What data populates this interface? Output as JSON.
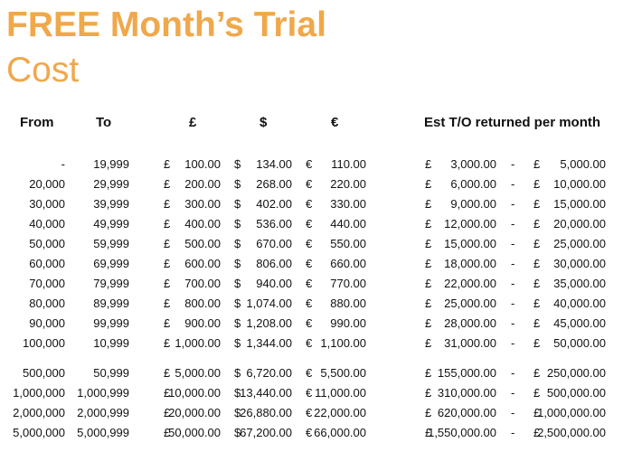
{
  "title": "FREE Month’s Trial",
  "subtitle": "Cost",
  "headers": {
    "from": "From",
    "to": "To",
    "gbp": "£",
    "usd": "$",
    "eur": "€",
    "turnover": "Est T/O returned per month"
  },
  "symbols": {
    "gbp": "£",
    "usd": "$",
    "eur": "€",
    "dash": "-"
  },
  "rows": [
    {
      "from": "-",
      "to": "19,999",
      "gbp": "100.00",
      "usd": "134.00",
      "eur": "110.00",
      "to_low": "3,000.00",
      "to_high": "5,000.00"
    },
    {
      "from": "20,000",
      "to": "29,999",
      "gbp": "200.00",
      "usd": "268.00",
      "eur": "220.00",
      "to_low": "6,000.00",
      "to_high": "10,000.00"
    },
    {
      "from": "30,000",
      "to": "39,999",
      "gbp": "300.00",
      "usd": "402.00",
      "eur": "330.00",
      "to_low": "9,000.00",
      "to_high": "15,000.00"
    },
    {
      "from": "40,000",
      "to": "49,999",
      "gbp": "400.00",
      "usd": "536.00",
      "eur": "440.00",
      "to_low": "12,000.00",
      "to_high": "20,000.00"
    },
    {
      "from": "50,000",
      "to": "59,999",
      "gbp": "500.00",
      "usd": "670.00",
      "eur": "550.00",
      "to_low": "15,000.00",
      "to_high": "25,000.00"
    },
    {
      "from": "60,000",
      "to": "69,999",
      "gbp": "600.00",
      "usd": "806.00",
      "eur": "660.00",
      "to_low": "18,000.00",
      "to_high": "30,000.00"
    },
    {
      "from": "70,000",
      "to": "79,999",
      "gbp": "700.00",
      "usd": "940.00",
      "eur": "770.00",
      "to_low": "22,000.00",
      "to_high": "35,000.00"
    },
    {
      "from": "80,000",
      "to": "89,999",
      "gbp": "800.00",
      "usd": "1,074.00",
      "eur": "880.00",
      "to_low": "25,000.00",
      "to_high": "40,000.00"
    },
    {
      "from": "90,000",
      "to": "99,999",
      "gbp": "900.00",
      "usd": "1,208.00",
      "eur": "990.00",
      "to_low": "28,000.00",
      "to_high": "45,000.00"
    },
    {
      "from": "100,000",
      "to": "10,999",
      "gbp": "1,000.00",
      "usd": "1,344.00",
      "eur": "1,100.00",
      "to_low": "31,000.00",
      "to_high": "50,000.00"
    },
    {
      "from": "500,000",
      "to": "50,999",
      "gbp": "5,000.00",
      "usd": "6,720.00",
      "eur": "5,500.00",
      "to_low": "155,000.00",
      "to_high": "250,000.00"
    },
    {
      "from": "1,000,000",
      "to": "1,000,999",
      "gbp": "10,000.00",
      "usd": "13,440.00",
      "eur": "11,000.00",
      "to_low": "310,000.00",
      "to_high": "500,000.00"
    },
    {
      "from": "2,000,000",
      "to": "2,000,999",
      "gbp": "20,000.00",
      "usd": "26,880.00",
      "eur": "22,000.00",
      "to_low": "620,000.00",
      "to_high": "1,000,000.00"
    },
    {
      "from": "5,000,000",
      "to": "5,000,999",
      "gbp": "50,000.00",
      "usd": "67,200.00",
      "eur": "66,000.00",
      "to_low": "1,550,000.00",
      "to_high": "2,500,000.00"
    }
  ]
}
